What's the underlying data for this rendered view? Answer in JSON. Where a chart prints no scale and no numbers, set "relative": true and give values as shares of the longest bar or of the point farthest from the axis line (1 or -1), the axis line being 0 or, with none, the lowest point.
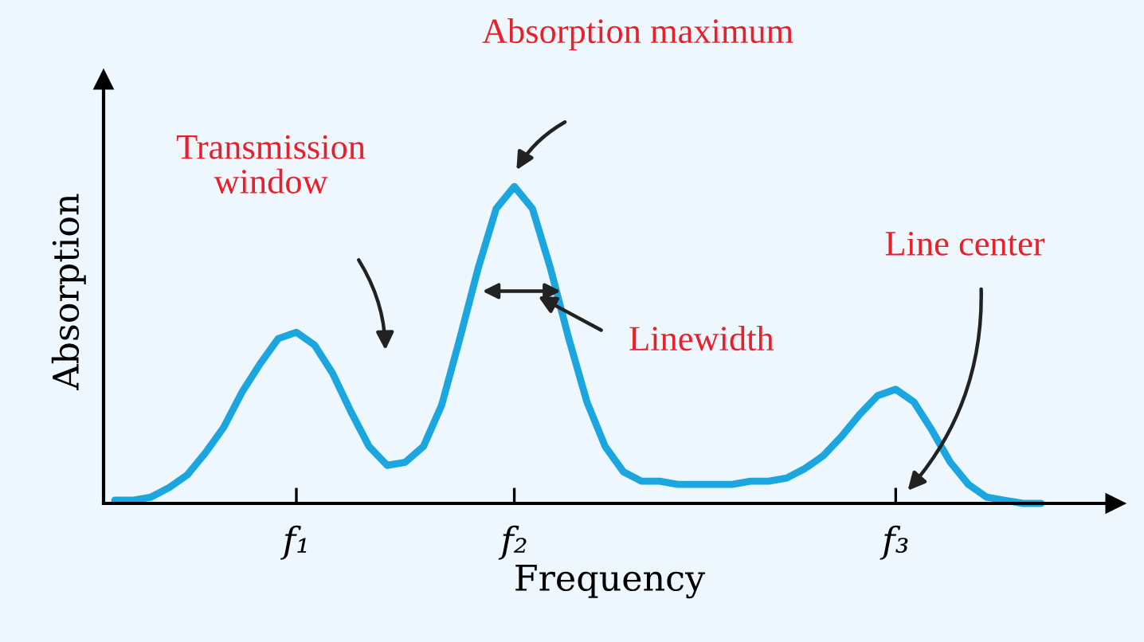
{
  "chart_data": {
    "type": "line",
    "relative": true,
    "color": "#1ca6e0",
    "xlabel": "Frequency",
    "ylabel": "Absorption",
    "grid": false,
    "legend": false,
    "marker": "none",
    "line_style": "solid",
    "categories": [
      null,
      null,
      null,
      null,
      null,
      null,
      null,
      null,
      null,
      null,
      "f₁",
      null,
      null,
      null,
      null,
      null,
      null,
      null,
      null,
      null,
      null,
      null,
      "f₂",
      null,
      null,
      null,
      null,
      null,
      null,
      null,
      null,
      null,
      null,
      null,
      null,
      null,
      null,
      null,
      null,
      null,
      null,
      null,
      null,
      "f₃",
      null,
      null,
      null,
      null,
      null,
      null,
      null,
      null
    ],
    "values": [
      0.01,
      0.01,
      0.02,
      0.05,
      0.09,
      0.16,
      0.24,
      0.35,
      0.44,
      0.52,
      0.54,
      0.5,
      0.41,
      0.29,
      0.18,
      0.12,
      0.13,
      0.18,
      0.31,
      0.52,
      0.74,
      0.93,
      1,
      0.93,
      0.74,
      0.52,
      0.32,
      0.18,
      0.1,
      0.07,
      0.07,
      0.06,
      0.06,
      0.06,
      0.06,
      0.07,
      0.07,
      0.08,
      0.11,
      0.15,
      0.21,
      0.28,
      0.34,
      0.36,
      0.32,
      0.23,
      0.13,
      0.06,
      0.02,
      0.01,
      0,
      0
    ],
    "annotations": [
      "Absorption maximum",
      "Transmission\nwindow",
      "Linewidth",
      "Line center"
    ]
  }
}
